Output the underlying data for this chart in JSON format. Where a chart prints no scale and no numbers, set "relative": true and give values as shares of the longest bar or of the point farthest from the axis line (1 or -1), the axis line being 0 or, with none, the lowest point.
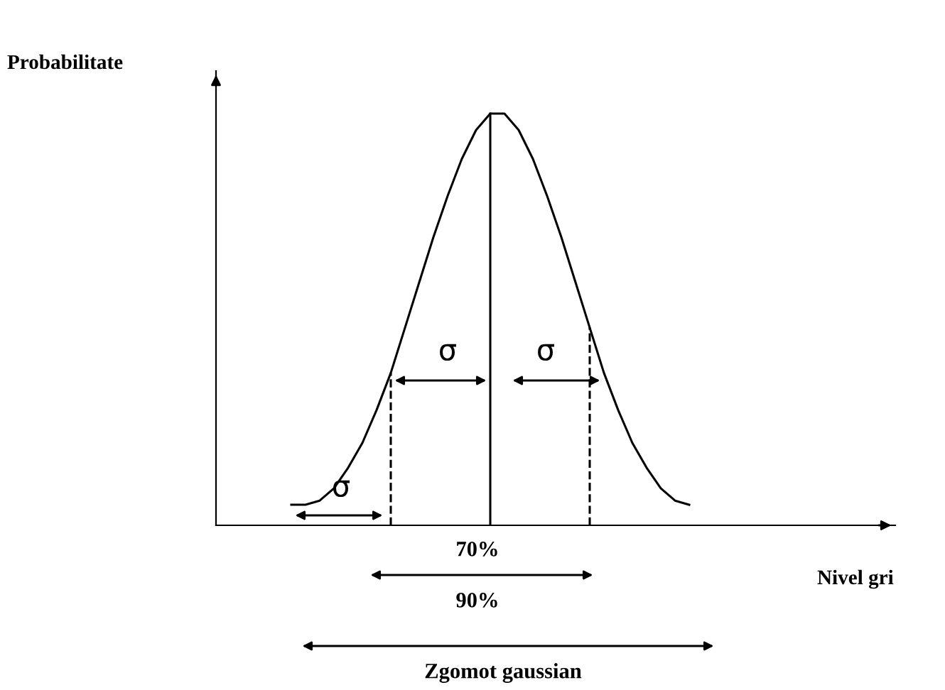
{
  "chart_data": {
    "type": "line",
    "relative": true,
    "categories": [
      null,
      null,
      null,
      null,
      null,
      null,
      null,
      null,
      null,
      null,
      null,
      null,
      null,
      null,
      null,
      null,
      null,
      null,
      null,
      null,
      null,
      null,
      null,
      null,
      null,
      null,
      null,
      null,
      null
    ],
    "series": [
      {
        "color": "#000000",
        "values": [
          0.05,
          0.05,
          0.06,
          0.09,
          0.14,
          0.2,
          0.28,
          0.37,
          0.48,
          0.59,
          0.7,
          0.8,
          0.89,
          0.96,
          1,
          1,
          0.96,
          0.89,
          0.8,
          0.7,
          0.59,
          0.48,
          0.37,
          0.28,
          0.2,
          0.14,
          0.09,
          0.06,
          0.05
        ]
      }
    ],
    "annotations": [
      "Probabilitate",
      "Nivel gri",
      "σ",
      "σ",
      "σ",
      "70%",
      "90%",
      "Zgomot gaussian"
    ],
    "marker": "none",
    "line_style": "solid"
  }
}
